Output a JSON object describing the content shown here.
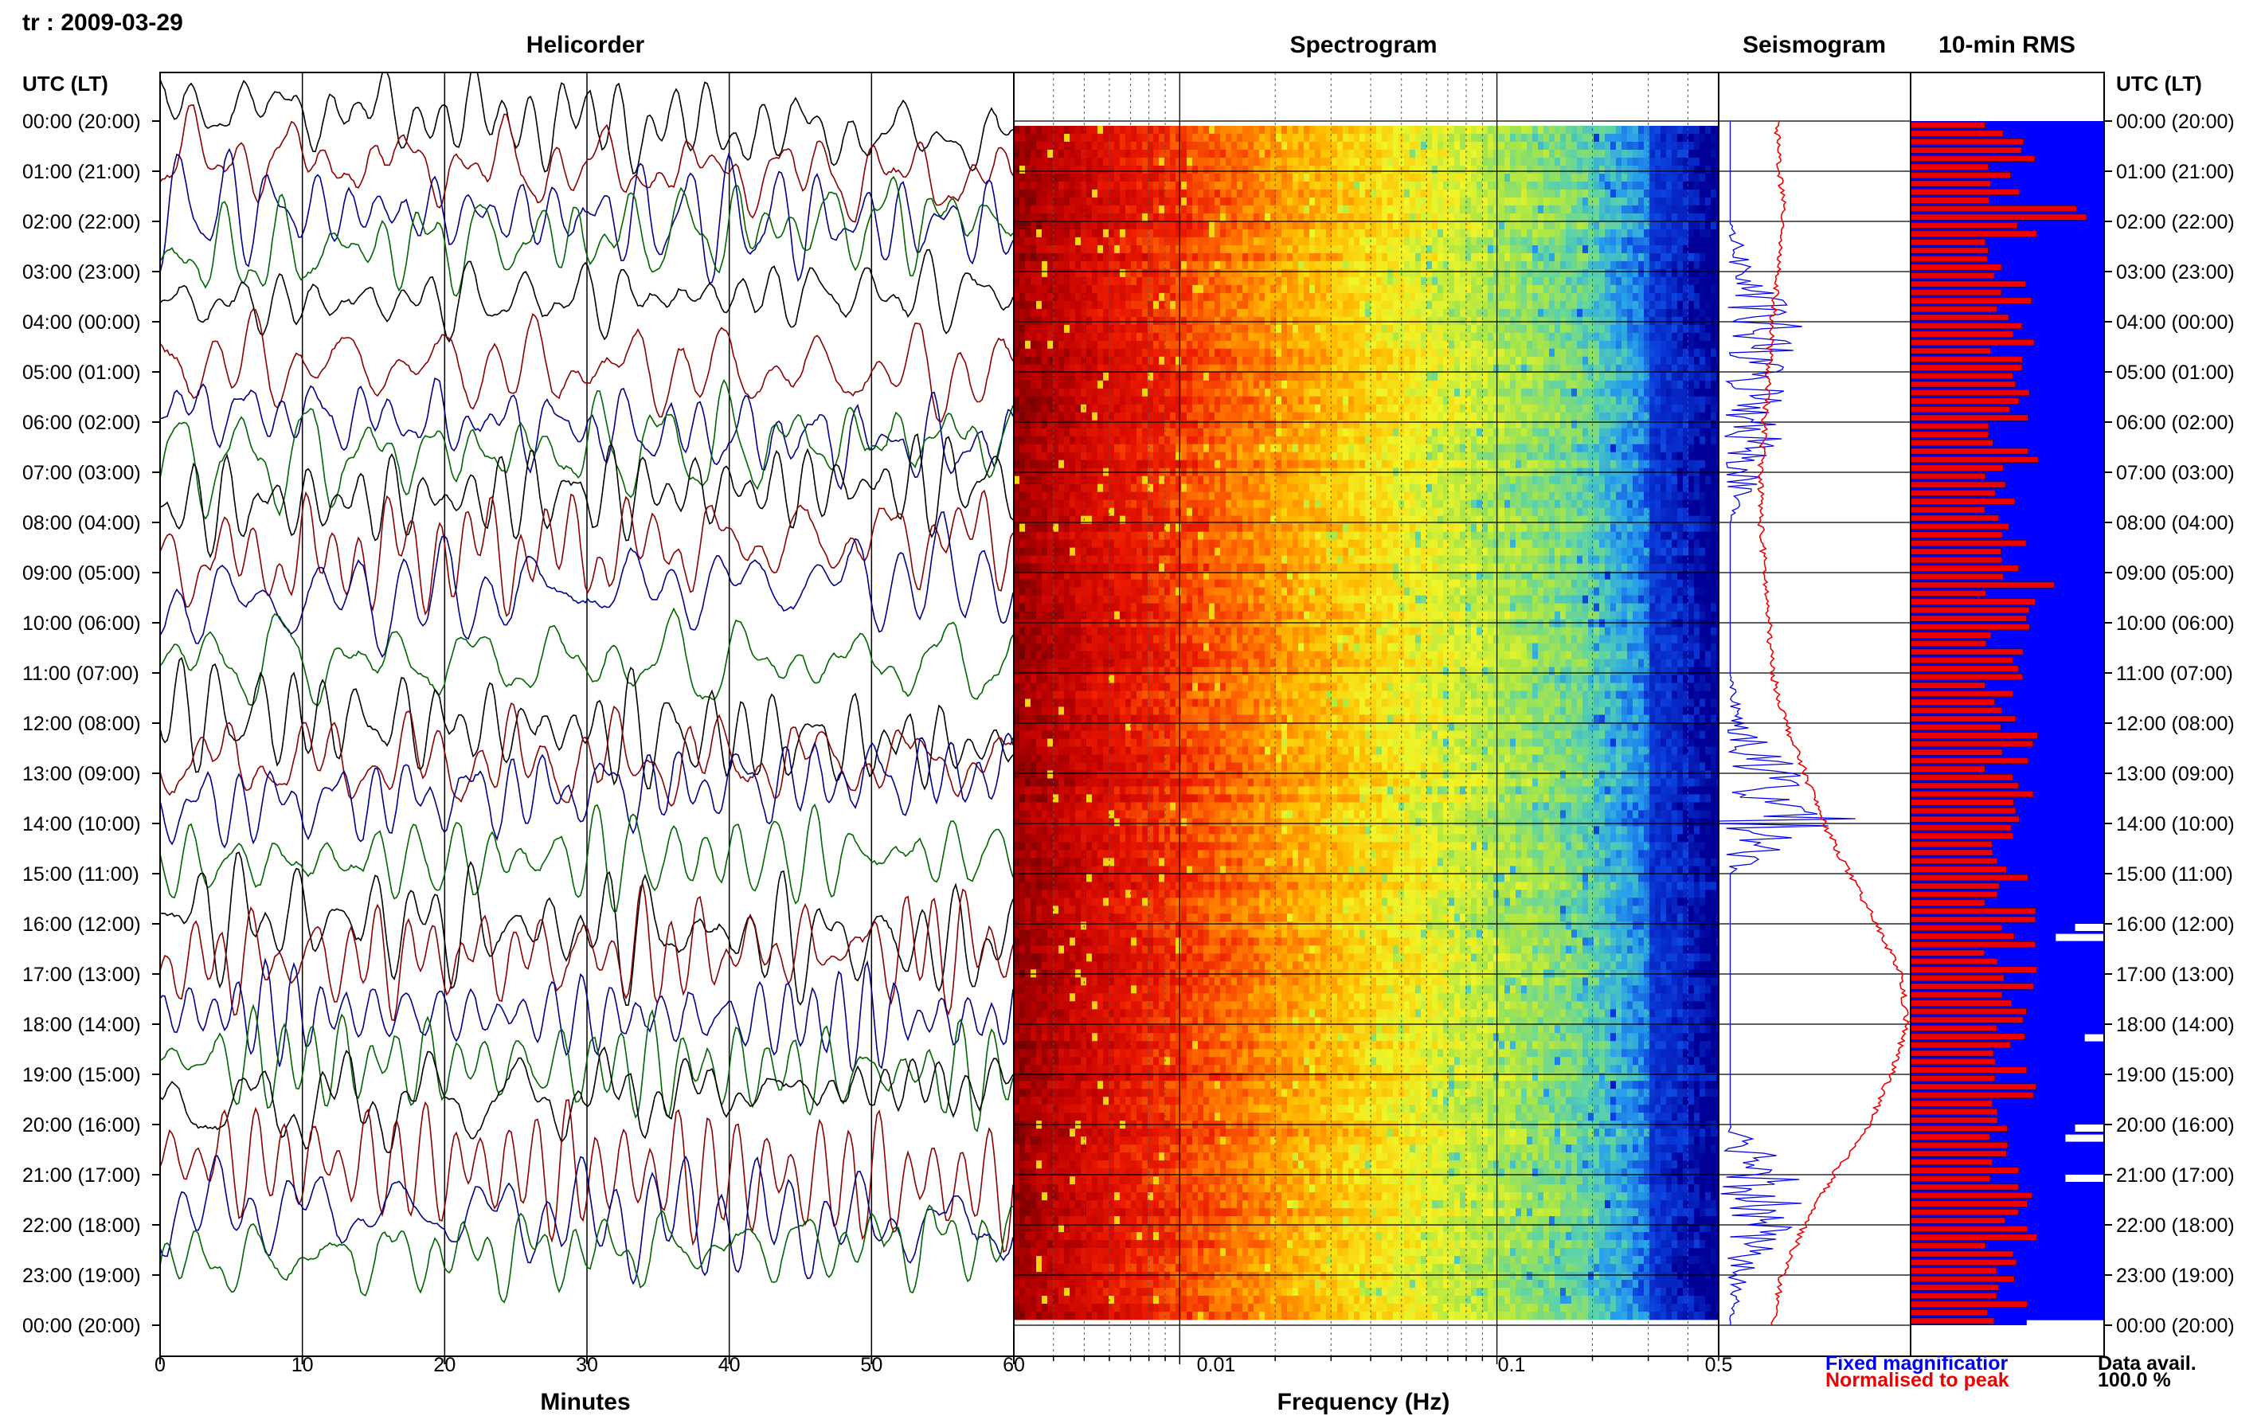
{
  "header": {
    "station_date": "tr : 2009-03-29"
  },
  "panels": {
    "helicorder": {
      "title": "Helicorder",
      "xlabel": "Minutes",
      "x_ticks": [
        "0",
        "10",
        "20",
        "30",
        "40",
        "50",
        "60"
      ]
    },
    "spectrogram": {
      "title": "Spectrogram",
      "xlabel": "Frequency (Hz)",
      "x_ticks": [
        "0.01",
        "0.1",
        "0.5"
      ]
    },
    "seismogram": {
      "title": "Seismogram"
    },
    "rms": {
      "title": "10-min RMS"
    }
  },
  "time_axis": {
    "label": "UTC (LT)",
    "rows": [
      "00:00 (20:00)",
      "01:00 (21:00)",
      "02:00 (22:00)",
      "03:00 (23:00)",
      "04:00 (00:00)",
      "05:00 (01:00)",
      "06:00 (02:00)",
      "07:00 (03:00)",
      "08:00 (04:00)",
      "09:00 (05:00)",
      "10:00 (06:00)",
      "11:00 (07:00)",
      "12:00 (08:00)",
      "13:00 (09:00)",
      "14:00 (10:00)",
      "15:00 (11:00)",
      "16:00 (12:00)",
      "17:00 (13:00)",
      "18:00 (14:00)",
      "19:00 (15:00)",
      "20:00 (16:00)",
      "21:00 (17:00)",
      "22:00 (18:00)",
      "23:00 (19:00)",
      "00:00 (20:00)"
    ]
  },
  "legend": {
    "fixed": "Fixed magnificatior",
    "normalised": "Normalised to peak",
    "data_avail_label": "Data avail.",
    "data_avail_value": "100.0 %"
  },
  "colors": {
    "trace_cycle": [
      "#000000",
      "#8b0000",
      "#00008b",
      "#006400"
    ],
    "fixed": "#0000ee",
    "normalised": "#ee0000",
    "rms_fill": "#0000ff",
    "rms_bar": "#ee0000"
  },
  "chart_data": {
    "type": "heatmap",
    "title": "Spectrogram",
    "xlabel": "Frequency (Hz)",
    "xscale": "log",
    "xlim": [
      0.003,
      0.5
    ],
    "seismogram_fixed_profile": [
      0,
      0,
      0,
      0.3,
      0.8,
      0.6,
      0.7,
      0.4,
      0,
      0,
      0,
      0,
      0.2,
      0.8,
      1.4,
      0,
      0,
      0,
      0,
      0,
      0,
      1.0,
      0.7,
      0.2,
      0
    ],
    "seismogram_normalised_profile": [
      0.3,
      0.32,
      0.34,
      0.31,
      0.28,
      0.26,
      0.24,
      0.22,
      0.22,
      0.24,
      0.26,
      0.28,
      0.35,
      0.45,
      0.55,
      0.68,
      0.82,
      0.95,
      0.98,
      0.9,
      0.78,
      0.6,
      0.45,
      0.33,
      0.28
    ],
    "rms_blocks_missing": [
      [
        16.0,
        0.85
      ],
      [
        16.2,
        0.75
      ],
      [
        18.2,
        0.9
      ],
      [
        20.0,
        0.85
      ],
      [
        20.2,
        0.8
      ],
      [
        21.0,
        0.8
      ],
      [
        23.9,
        0.6
      ]
    ]
  }
}
